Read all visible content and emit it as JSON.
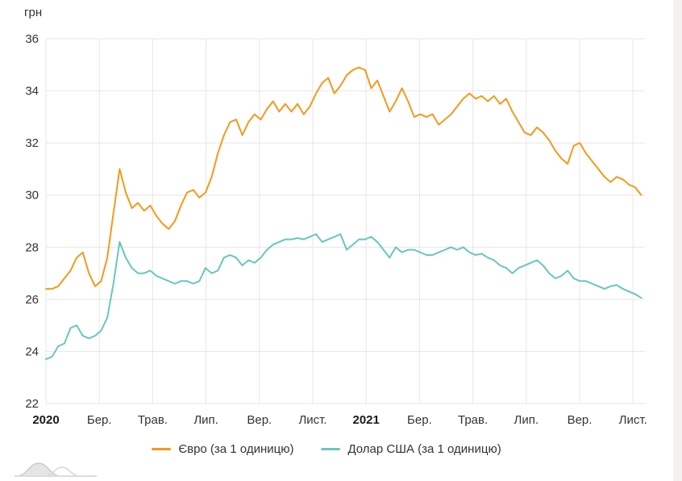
{
  "y_axis_title": "грн",
  "colors": {
    "grid": "#e6e6e6",
    "tick_text": "#333333",
    "year_tick_text": "#1a1a1a",
    "watermark": "#cccccc"
  },
  "watermark_icon": "chart-hills-logo-icon",
  "chart_data": {
    "type": "line",
    "title": "",
    "xlabel": "",
    "ylabel": "грн",
    "ylim": [
      22,
      36
    ],
    "yticks": [
      36,
      34,
      32,
      30,
      28,
      26,
      24,
      22
    ],
    "xtick_labels": [
      "2020",
      "Бер.",
      "Трав.",
      "Лип.",
      "Вер.",
      "Лист.",
      "2021",
      "Бер.",
      "Трав.",
      "Лип.",
      "Вер.",
      "Лист."
    ],
    "xtick_months": [
      0,
      2,
      4,
      6,
      8,
      10,
      12,
      14,
      16,
      18,
      20,
      22
    ],
    "x_unit": "months since Jan 2020",
    "grid": true,
    "legend_position": "bottom",
    "x": [
      0.0,
      0.23,
      0.46,
      0.69,
      0.92,
      1.15,
      1.38,
      1.61,
      1.84,
      2.07,
      2.3,
      2.53,
      2.76,
      2.99,
      3.22,
      3.45,
      3.68,
      3.91,
      4.14,
      4.37,
      4.6,
      4.83,
      5.06,
      5.29,
      5.52,
      5.75,
      5.98,
      6.21,
      6.44,
      6.67,
      6.9,
      7.13,
      7.36,
      7.59,
      7.82,
      8.05,
      8.28,
      8.51,
      8.74,
      8.97,
      9.2,
      9.43,
      9.66,
      9.89,
      10.12,
      10.35,
      10.58,
      10.81,
      11.04,
      11.27,
      11.5,
      11.73,
      11.96,
      12.19,
      12.42,
      12.65,
      12.88,
      13.11,
      13.34,
      13.57,
      13.8,
      14.03,
      14.26,
      14.49,
      14.72,
      14.95,
      15.18,
      15.41,
      15.64,
      15.87,
      16.1,
      16.33,
      16.56,
      16.79,
      17.02,
      17.25,
      17.48,
      17.71,
      17.94,
      18.17,
      18.4,
      18.63,
      18.86,
      19.09,
      19.32,
      19.55,
      19.78,
      20.01,
      20.24,
      20.47,
      20.7,
      20.93,
      21.16,
      21.39,
      21.62,
      21.85,
      22.08,
      22.31
    ],
    "series": [
      {
        "name": "Євро (за 1 одиницю)",
        "color": "#F5991C",
        "values": [
          26.4,
          26.4,
          26.5,
          26.8,
          27.1,
          27.6,
          27.8,
          27.0,
          26.5,
          26.7,
          27.6,
          29.3,
          31.0,
          30.1,
          29.5,
          29.7,
          29.4,
          29.6,
          29.2,
          28.9,
          28.7,
          29.0,
          29.6,
          30.1,
          30.2,
          29.9,
          30.1,
          30.7,
          31.6,
          32.3,
          32.8,
          32.9,
          32.3,
          32.8,
          33.1,
          32.9,
          33.3,
          33.6,
          33.2,
          33.5,
          33.2,
          33.5,
          33.1,
          33.4,
          33.9,
          34.3,
          34.5,
          33.9,
          34.2,
          34.6,
          34.8,
          34.9,
          34.8,
          34.1,
          34.4,
          33.8,
          33.2,
          33.6,
          34.1,
          33.6,
          33.0,
          33.1,
          33.0,
          33.1,
          32.7,
          32.9,
          33.1,
          33.4,
          33.7,
          33.9,
          33.7,
          33.8,
          33.6,
          33.8,
          33.5,
          33.7,
          33.2,
          32.8,
          32.4,
          32.3,
          32.6,
          32.4,
          32.1,
          31.7,
          31.4,
          31.2,
          31.9,
          32.0,
          31.6,
          31.3,
          31.0,
          30.7,
          30.5,
          30.7,
          30.6,
          30.4,
          30.3,
          30.0
        ]
      },
      {
        "name": "Долар США (за 1 одиницю)",
        "color": "#68C6C0",
        "values": [
          23.7,
          23.8,
          24.2,
          24.3,
          24.9,
          25.0,
          24.6,
          24.5,
          24.6,
          24.8,
          25.3,
          26.6,
          28.2,
          27.6,
          27.2,
          27.0,
          27.0,
          27.1,
          26.9,
          26.8,
          26.7,
          26.6,
          26.7,
          26.7,
          26.6,
          26.7,
          27.2,
          27.0,
          27.1,
          27.6,
          27.7,
          27.6,
          27.3,
          27.5,
          27.4,
          27.6,
          27.9,
          28.1,
          28.2,
          28.3,
          28.3,
          28.35,
          28.3,
          28.4,
          28.5,
          28.2,
          28.3,
          28.4,
          28.5,
          27.9,
          28.1,
          28.3,
          28.3,
          28.4,
          28.2,
          27.9,
          27.6,
          28.0,
          27.8,
          27.9,
          27.9,
          27.8,
          27.7,
          27.7,
          27.8,
          27.9,
          28.0,
          27.9,
          28.0,
          27.8,
          27.7,
          27.75,
          27.6,
          27.5,
          27.3,
          27.2,
          27.0,
          27.2,
          27.3,
          27.4,
          27.5,
          27.3,
          27.0,
          26.8,
          26.9,
          27.1,
          26.8,
          26.7,
          26.7,
          26.6,
          26.5,
          26.4,
          26.5,
          26.55,
          26.4,
          26.3,
          26.2,
          26.05
        ]
      }
    ]
  }
}
